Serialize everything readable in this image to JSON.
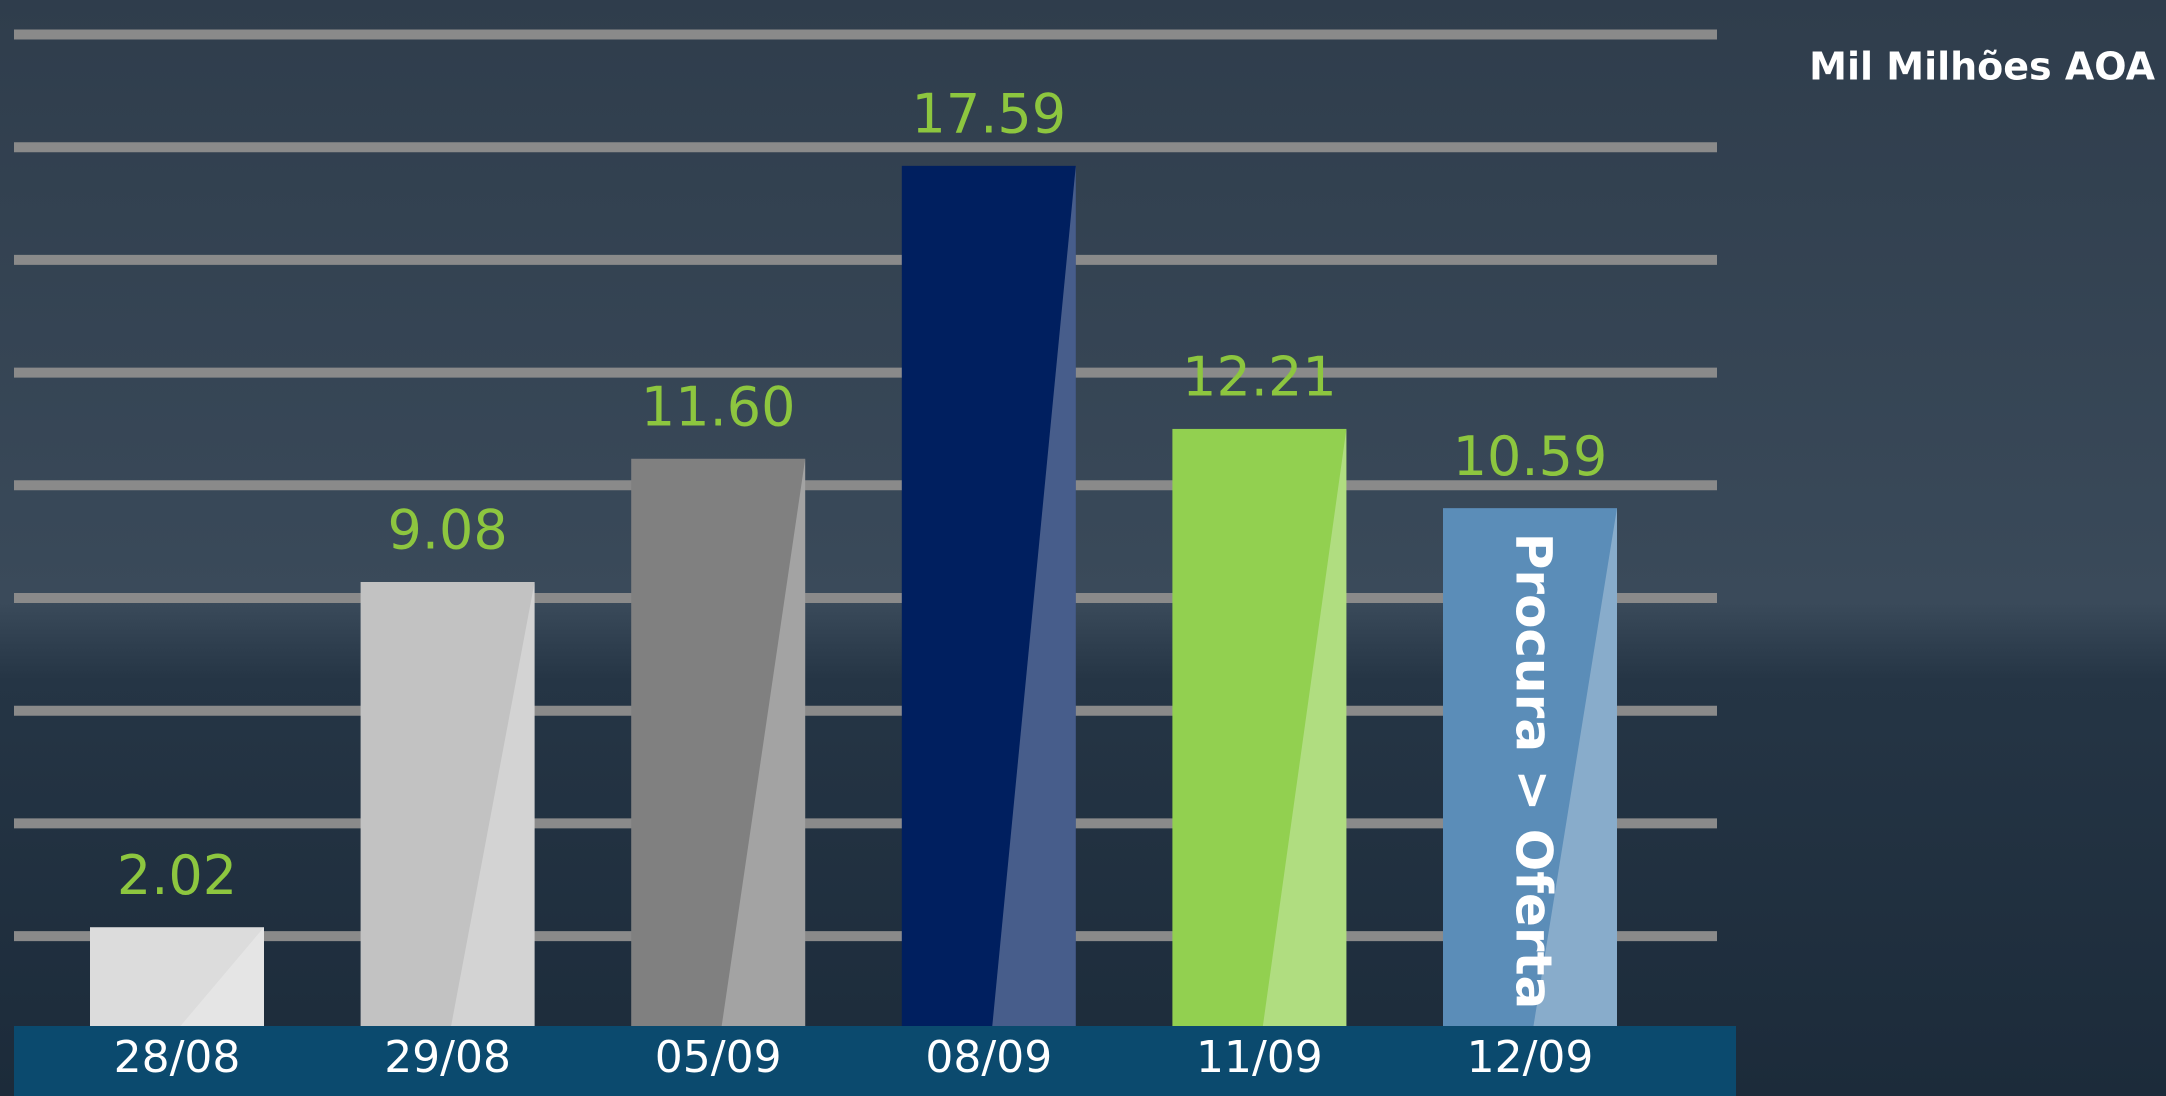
{
  "chart_data": {
    "type": "bar",
    "unit_label": "Mil Milhões AOA",
    "annotation": "Procura > Oferta",
    "categories": [
      "28/08",
      "29/08",
      "05/09",
      "08/09",
      "11/09",
      "12/09"
    ],
    "values": [
      2.02,
      9.08,
      11.6,
      17.59,
      12.21,
      10.59
    ],
    "value_labels": [
      "2.02",
      "9.08",
      "11.60",
      "17.59",
      "12.21",
      "10.59"
    ],
    "colors": [
      "#dcdcdc",
      "#c2c2c2",
      "#808080",
      "#001f5f",
      "#92d050",
      "#5b8db8"
    ],
    "ylim": [
      0,
      20
    ]
  }
}
